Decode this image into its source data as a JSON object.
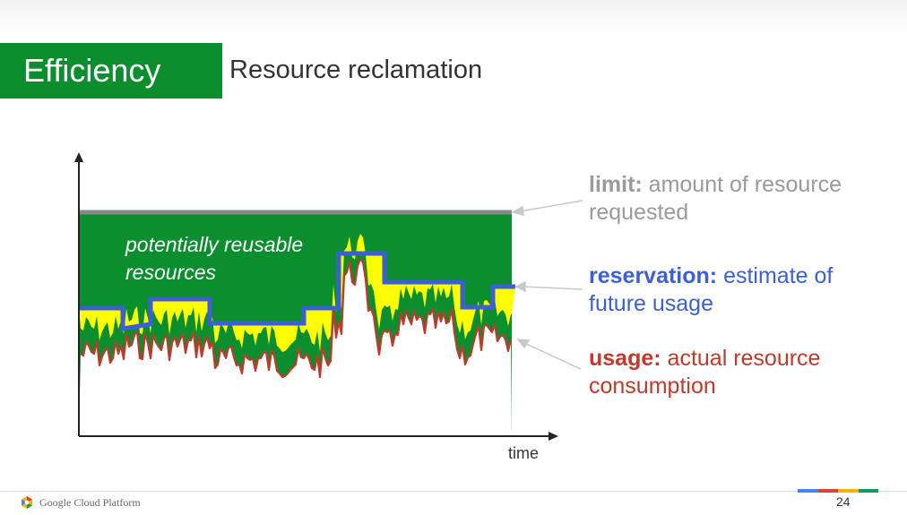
{
  "header": {
    "section": "Efficiency",
    "title": "Resource reclamation"
  },
  "diagram": {
    "reusable_label_line1": "potentially reusable",
    "reusable_label_line2": "resources",
    "x_axis_label": "time",
    "colors": {
      "reusable": "#0b8f2e",
      "reservation_gap": "#ffff00",
      "limit": "#888888",
      "reservation": "#3c5fd6",
      "usage": "#c0392b"
    }
  },
  "annotations": {
    "limit": {
      "term": "limit:",
      "line1_rest": " amount of resource",
      "line2": "requested"
    },
    "reservation": {
      "term": "reservation:",
      "line1_rest": " estimate of",
      "line2": "future usage"
    },
    "usage": {
      "term": "usage:",
      "line1_rest": " actual resource",
      "line2": "consumption"
    }
  },
  "footer": {
    "brand": "Google Cloud Platform",
    "page_number": "24",
    "bar_colors": [
      "#4285f4",
      "#db4437",
      "#f4b400",
      "#0f9d58"
    ]
  }
}
